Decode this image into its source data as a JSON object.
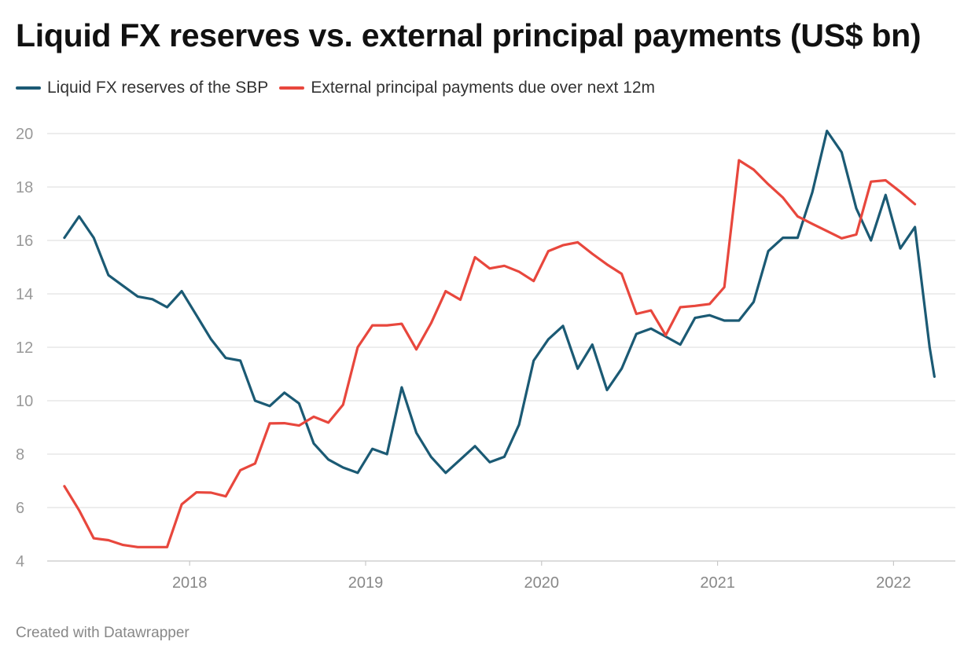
{
  "title": "Liquid FX reserves vs. external principal payments (US$ bn)",
  "footer": "Created with Datawrapper",
  "chart_data": {
    "type": "line",
    "title": "Liquid FX reserves vs. external principal payments (US$ bn)",
    "xlabel": "",
    "ylabel": "",
    "ylim": [
      4,
      20
    ],
    "yticks": [
      4,
      6,
      8,
      10,
      12,
      14,
      16,
      18,
      20
    ],
    "xticks": [
      "2018",
      "2019",
      "2020",
      "2021",
      "2022"
    ],
    "grid": "horizontal",
    "legend": "top-left",
    "series": [
      {
        "name": "Liquid FX reserves of the SBP",
        "color": "#1b5a74",
        "points": [
          [
            "2017-04",
            16.1
          ],
          [
            "2017-05",
            16.9
          ],
          [
            "2017-06",
            16.1
          ],
          [
            "2017-07",
            14.7
          ],
          [
            "2017-08",
            14.3
          ],
          [
            "2017-09",
            13.9
          ],
          [
            "2017-10",
            13.8
          ],
          [
            "2017-11",
            13.5
          ],
          [
            "2017-12",
            14.1
          ],
          [
            "2018-01",
            13.2
          ],
          [
            "2018-02",
            12.3
          ],
          [
            "2018-03",
            11.6
          ],
          [
            "2018-04",
            11.5
          ],
          [
            "2018-05",
            10.0
          ],
          [
            "2018-06",
            9.8
          ],
          [
            "2018-07",
            10.3
          ],
          [
            "2018-08",
            9.9
          ],
          [
            "2018-09",
            8.4
          ],
          [
            "2018-10",
            7.8
          ],
          [
            "2018-11",
            7.5
          ],
          [
            "2018-12",
            7.3
          ],
          [
            "2019-01",
            8.2
          ],
          [
            "2019-02",
            8.0
          ],
          [
            "2019-03",
            10.5
          ],
          [
            "2019-04",
            8.8
          ],
          [
            "2019-05",
            7.9
          ],
          [
            "2019-06",
            7.3
          ],
          [
            "2019-07",
            7.8
          ],
          [
            "2019-08",
            8.3
          ],
          [
            "2019-09",
            7.7
          ],
          [
            "2019-10",
            7.9
          ],
          [
            "2019-11",
            9.1
          ],
          [
            "2019-12",
            11.5
          ],
          [
            "2020-01",
            12.3
          ],
          [
            "2020-02",
            12.8
          ],
          [
            "2020-03",
            11.2
          ],
          [
            "2020-04",
            12.1
          ],
          [
            "2020-05",
            10.4
          ],
          [
            "2020-06",
            11.2
          ],
          [
            "2020-07",
            12.5
          ],
          [
            "2020-08",
            12.7
          ],
          [
            "2020-09",
            12.4
          ],
          [
            "2020-10",
            12.1
          ],
          [
            "2020-11",
            13.1
          ],
          [
            "2020-12",
            13.2
          ],
          [
            "2021-01",
            13.0
          ],
          [
            "2021-02",
            13.0
          ],
          [
            "2021-03",
            13.7
          ],
          [
            "2021-04",
            15.6
          ],
          [
            "2021-05",
            16.1
          ],
          [
            "2021-06",
            16.1
          ],
          [
            "2021-07",
            17.8
          ],
          [
            "2021-08",
            20.1
          ],
          [
            "2021-09",
            19.3
          ],
          [
            "2021-10",
            17.2
          ],
          [
            "2021-11",
            16.0
          ],
          [
            "2021-12",
            17.7
          ],
          [
            "2022-01",
            15.7
          ],
          [
            "2022-02",
            16.5
          ],
          [
            "2022-03",
            12.0
          ],
          [
            "2022-03-25",
            10.9
          ]
        ]
      },
      {
        "name": "External principal payments due over next 12m",
        "color": "#e8473d",
        "points": [
          [
            "2017-04",
            6.8
          ],
          [
            "2017-05",
            5.9
          ],
          [
            "2017-06",
            4.85
          ],
          [
            "2017-07",
            4.78
          ],
          [
            "2017-08",
            4.6
          ],
          [
            "2017-09",
            4.52
          ],
          [
            "2017-10",
            4.52
          ],
          [
            "2017-11",
            4.52
          ],
          [
            "2017-12",
            6.12
          ],
          [
            "2018-01",
            6.57
          ],
          [
            "2018-02",
            6.56
          ],
          [
            "2018-03",
            6.42
          ],
          [
            "2018-04",
            7.4
          ],
          [
            "2018-05",
            7.65
          ],
          [
            "2018-06",
            9.15
          ],
          [
            "2018-07",
            9.16
          ],
          [
            "2018-08",
            9.07
          ],
          [
            "2018-09",
            9.4
          ],
          [
            "2018-10",
            9.18
          ],
          [
            "2018-11",
            9.85
          ],
          [
            "2018-12",
            12.0
          ],
          [
            "2019-01",
            12.82
          ],
          [
            "2019-02",
            12.82
          ],
          [
            "2019-03",
            12.88
          ],
          [
            "2019-04",
            11.92
          ],
          [
            "2019-05",
            12.9
          ],
          [
            "2019-06",
            14.1
          ],
          [
            "2019-07",
            13.78
          ],
          [
            "2019-08",
            15.37
          ],
          [
            "2019-09",
            14.95
          ],
          [
            "2019-10",
            15.05
          ],
          [
            "2019-11",
            14.83
          ],
          [
            "2019-12",
            14.48
          ],
          [
            "2020-01",
            15.6
          ],
          [
            "2020-02",
            15.82
          ],
          [
            "2020-03",
            15.93
          ],
          [
            "2020-04",
            15.5
          ],
          [
            "2020-05",
            15.1
          ],
          [
            "2020-06",
            14.75
          ],
          [
            "2020-07",
            13.25
          ],
          [
            "2020-08",
            13.38
          ],
          [
            "2020-09",
            12.45
          ],
          [
            "2020-10",
            13.5
          ],
          [
            "2020-11",
            13.55
          ],
          [
            "2020-12",
            13.62
          ],
          [
            "2021-01",
            14.25
          ],
          [
            "2021-02",
            19.0
          ],
          [
            "2021-03",
            18.65
          ],
          [
            "2021-04",
            18.1
          ],
          [
            "2021-05",
            17.6
          ],
          [
            "2021-06",
            16.9
          ],
          [
            "2021-07",
            16.62
          ],
          [
            "2021-08",
            16.35
          ],
          [
            "2021-09",
            16.08
          ],
          [
            "2021-10",
            16.22
          ],
          [
            "2021-11",
            18.2
          ],
          [
            "2021-12",
            18.25
          ],
          [
            "2022-01",
            17.82
          ],
          [
            "2022-02",
            17.36
          ]
        ]
      }
    ]
  }
}
